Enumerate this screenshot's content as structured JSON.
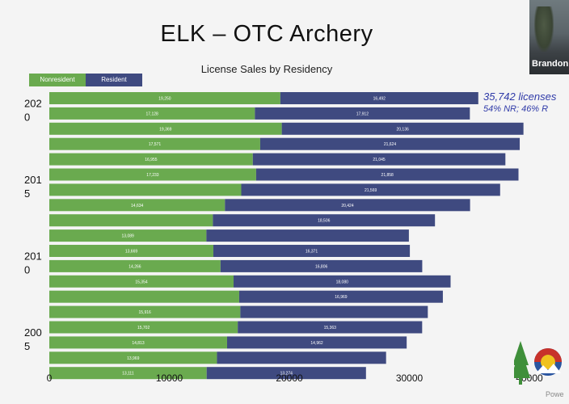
{
  "slide": {
    "title": "ELK – OTC Archery",
    "presenter_name": "Brandon",
    "watermark": "Powe"
  },
  "chart_data": {
    "type": "bar",
    "orientation": "horizontal",
    "stacked": true,
    "title": "License Sales by Residency",
    "xlabel": "",
    "ylabel": "",
    "xlim": [
      0,
      40000
    ],
    "x_ticks": [
      "0",
      "10000",
      "20000",
      "30000",
      "40000"
    ],
    "legend": "top-left",
    "grid": false,
    "colors": {
      "Nonresident": "#6aaa4f",
      "Resident": "#3f4a80"
    },
    "year_labels": [
      {
        "text": "202\n0",
        "row": 1
      },
      {
        "text": "201\n5",
        "row": 6
      },
      {
        "text": "201\n0",
        "row": 11
      },
      {
        "text": "200\n5",
        "row": 16
      }
    ],
    "series": [
      {
        "name": "Nonresident",
        "values": [
          19250,
          17128,
          19369,
          17571,
          16955,
          17233,
          15993,
          14634,
          13627,
          13089,
          13669,
          14266,
          15354,
          15821,
          15916,
          15702,
          14813,
          13969,
          13111
        ],
        "labels": [
          "19,250",
          "17,128",
          "19,369",
          "17,571",
          "16,955",
          "17,233",
          "",
          "14,634",
          "",
          "13,089",
          "13,669",
          "14,266",
          "15,354",
          "",
          "15,916",
          "15,702",
          "14,813",
          "13,969",
          "13,111"
        ]
      },
      {
        "name": "Resident",
        "values": [
          16492,
          17912,
          20136,
          21624,
          21045,
          21858,
          21569,
          20424,
          18506,
          16870,
          16371,
          16806,
          18080,
          16969,
          15620,
          15363,
          14962,
          14090,
          13274
        ],
        "labels": [
          "16,492",
          "17,912",
          "20,136",
          "21,624",
          "21,045",
          "21,858",
          "21,569",
          "20,424",
          "18,506",
          "",
          "16,371",
          "16,806",
          "18,080",
          "16,969",
          "",
          "15,363",
          "14,962",
          "",
          "13,274"
        ]
      }
    ],
    "annotations": [
      "35,742 licenses",
      "54% NR; 46% R"
    ]
  }
}
